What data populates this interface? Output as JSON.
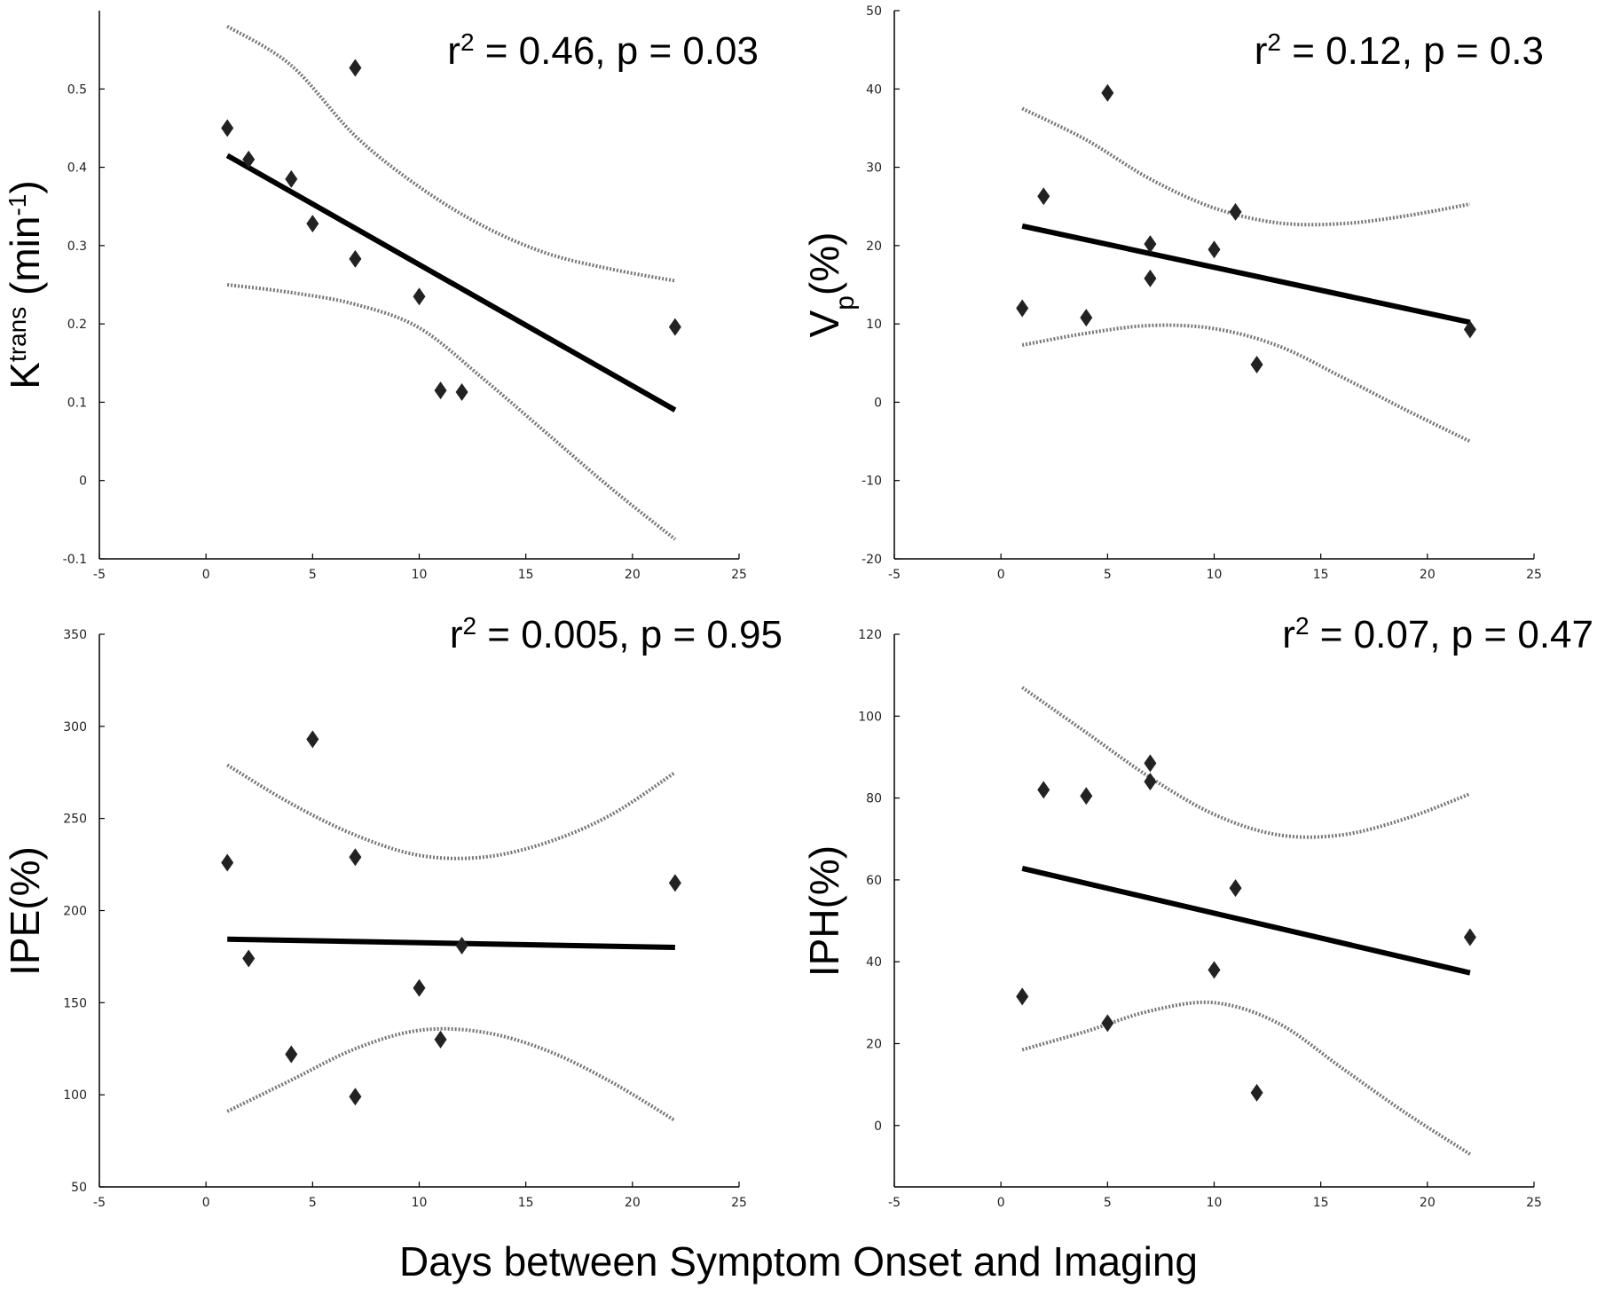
{
  "figure": {
    "shared_xlabel": "Days between Symptom Onset and Imaging"
  },
  "chart_data": [
    {
      "type": "scatter",
      "title": "",
      "stat_label": {
        "r2": "0.46",
        "p": "0.03"
      },
      "ylabel": {
        "base": "K",
        "sup": "trans",
        "unit_pre": " (min",
        "unit_sup": "-1",
        "unit_post": ")"
      },
      "xlim": [
        -5,
        25
      ],
      "ylim": [
        -0.1,
        0.6
      ],
      "xticks": [
        -5,
        0,
        5,
        10,
        15,
        20,
        25
      ],
      "yticks": [
        -0.1,
        0,
        0.1,
        0.2,
        0.3,
        0.4,
        0.5
      ],
      "ytick_labels": [
        "-0.1",
        "0",
        "0.1",
        "0.2",
        "0.3",
        "0.4",
        "0.5"
      ],
      "points": [
        {
          "x": 1,
          "y": 0.45
        },
        {
          "x": 2,
          "y": 0.41
        },
        {
          "x": 4,
          "y": 0.385
        },
        {
          "x": 5,
          "y": 0.328
        },
        {
          "x": 7,
          "y": 0.527
        },
        {
          "x": 7,
          "y": 0.283
        },
        {
          "x": 10,
          "y": 0.235
        },
        {
          "x": 11,
          "y": 0.115
        },
        {
          "x": 12,
          "y": 0.113
        },
        {
          "x": 22,
          "y": 0.196
        }
      ],
      "fit": [
        {
          "x": 1,
          "y": 0.415
        },
        {
          "x": 22,
          "y": 0.09
        }
      ],
      "ci_upper": [
        {
          "x": 1,
          "y": 0.58
        },
        {
          "x": 4,
          "y": 0.53
        },
        {
          "x": 7,
          "y": 0.44
        },
        {
          "x": 10,
          "y": 0.375
        },
        {
          "x": 13,
          "y": 0.325
        },
        {
          "x": 16,
          "y": 0.29
        },
        {
          "x": 19,
          "y": 0.27
        },
        {
          "x": 22,
          "y": 0.255
        }
      ],
      "ci_lower": [
        {
          "x": 1,
          "y": 0.25
        },
        {
          "x": 4,
          "y": 0.24
        },
        {
          "x": 7,
          "y": 0.225
        },
        {
          "x": 10,
          "y": 0.195
        },
        {
          "x": 13,
          "y": 0.13
        },
        {
          "x": 16,
          "y": 0.06
        },
        {
          "x": 19,
          "y": -0.01
        },
        {
          "x": 22,
          "y": -0.075
        }
      ]
    },
    {
      "type": "scatter",
      "title": "",
      "stat_label": {
        "r2": "0.12",
        "p": "0.3"
      },
      "ylabel": {
        "base": "V",
        "sub": "p",
        "post": "(%)"
      },
      "xlim": [
        -5,
        25
      ],
      "ylim": [
        -20,
        50
      ],
      "xticks": [
        -5,
        0,
        5,
        10,
        15,
        20,
        25
      ],
      "yticks": [
        -20,
        -10,
        0,
        10,
        20,
        30,
        40,
        50
      ],
      "ytick_labels": [
        "-20",
        "-10",
        "0",
        "10",
        "20",
        "30",
        "40",
        "50"
      ],
      "points": [
        {
          "x": 1,
          "y": 12
        },
        {
          "x": 2,
          "y": 26.3
        },
        {
          "x": 4,
          "y": 10.8
        },
        {
          "x": 5,
          "y": 39.5
        },
        {
          "x": 7,
          "y": 20.2
        },
        {
          "x": 7,
          "y": 15.8
        },
        {
          "x": 10,
          "y": 19.5
        },
        {
          "x": 11,
          "y": 24.3
        },
        {
          "x": 12,
          "y": 4.8
        },
        {
          "x": 22,
          "y": 9.3
        }
      ],
      "fit": [
        {
          "x": 1,
          "y": 22.5
        },
        {
          "x": 22,
          "y": 10.2
        }
      ],
      "ci_upper": [
        {
          "x": 1,
          "y": 37.5
        },
        {
          "x": 4,
          "y": 33.5
        },
        {
          "x": 7,
          "y": 28.5
        },
        {
          "x": 10,
          "y": 24.8
        },
        {
          "x": 13,
          "y": 22.9
        },
        {
          "x": 16,
          "y": 22.8
        },
        {
          "x": 19,
          "y": 23.8
        },
        {
          "x": 22,
          "y": 25.3
        }
      ],
      "ci_lower": [
        {
          "x": 1,
          "y": 7.3
        },
        {
          "x": 4,
          "y": 8.8
        },
        {
          "x": 7,
          "y": 9.8
        },
        {
          "x": 10,
          "y": 9.4
        },
        {
          "x": 13,
          "y": 7.2
        },
        {
          "x": 16,
          "y": 3.2
        },
        {
          "x": 19,
          "y": -1.0
        },
        {
          "x": 22,
          "y": -5.0
        }
      ]
    },
    {
      "type": "scatter",
      "title": "",
      "stat_label": {
        "r2": "0.005",
        "p": "0.95"
      },
      "ylabel": {
        "base": "IPE(%)"
      },
      "xlim": [
        -5,
        25
      ],
      "ylim": [
        50,
        350
      ],
      "xticks": [
        -5,
        0,
        5,
        10,
        15,
        20,
        25
      ],
      "yticks": [
        50,
        100,
        150,
        200,
        250,
        300,
        350
      ],
      "ytick_labels": [
        "50",
        "100",
        "150",
        "200",
        "250",
        "300",
        "350"
      ],
      "points": [
        {
          "x": 1,
          "y": 226
        },
        {
          "x": 2,
          "y": 174
        },
        {
          "x": 4,
          "y": 122
        },
        {
          "x": 5,
          "y": 293
        },
        {
          "x": 7,
          "y": 229
        },
        {
          "x": 7,
          "y": 99
        },
        {
          "x": 10,
          "y": 158
        },
        {
          "x": 11,
          "y": 130
        },
        {
          "x": 12,
          "y": 181
        },
        {
          "x": 22,
          "y": 215
        }
      ],
      "fit": [
        {
          "x": 1,
          "y": 184.5
        },
        {
          "x": 22,
          "y": 180
        }
      ],
      "ci_upper": [
        {
          "x": 1,
          "y": 279
        },
        {
          "x": 4,
          "y": 258
        },
        {
          "x": 7,
          "y": 241
        },
        {
          "x": 10,
          "y": 230
        },
        {
          "x": 13,
          "y": 229
        },
        {
          "x": 16,
          "y": 237
        },
        {
          "x": 19,
          "y": 252
        },
        {
          "x": 22,
          "y": 275
        }
      ],
      "ci_lower": [
        {
          "x": 1,
          "y": 91
        },
        {
          "x": 4,
          "y": 108
        },
        {
          "x": 7,
          "y": 125
        },
        {
          "x": 10,
          "y": 135
        },
        {
          "x": 13,
          "y": 134
        },
        {
          "x": 16,
          "y": 124
        },
        {
          "x": 19,
          "y": 107
        },
        {
          "x": 22,
          "y": 86
        }
      ]
    },
    {
      "type": "scatter",
      "title": "",
      "stat_label": {
        "r2": "0.07",
        "p": "0.47"
      },
      "ylabel": {
        "base": "IPH(%)"
      },
      "xlim": [
        -5,
        25
      ],
      "ylim": [
        -15,
        120
      ],
      "xticks": [
        -5,
        0,
        5,
        10,
        15,
        20,
        25
      ],
      "yticks": [
        0,
        20,
        40,
        60,
        80,
        100,
        120
      ],
      "ytick_labels": [
        "0",
        "20",
        "40",
        "60",
        "80",
        "100",
        "120"
      ],
      "points": [
        {
          "x": 1,
          "y": 31.5
        },
        {
          "x": 2,
          "y": 82
        },
        {
          "x": 4,
          "y": 80.5
        },
        {
          "x": 5,
          "y": 25
        },
        {
          "x": 7,
          "y": 88.5
        },
        {
          "x": 7,
          "y": 84
        },
        {
          "x": 10,
          "y": 38
        },
        {
          "x": 11,
          "y": 58
        },
        {
          "x": 12,
          "y": 8
        },
        {
          "x": 22,
          "y": 46
        }
      ],
      "fit": [
        {
          "x": 1,
          "y": 62.8
        },
        {
          "x": 22,
          "y": 37.3
        }
      ],
      "ci_upper": [
        {
          "x": 1,
          "y": 107
        },
        {
          "x": 4,
          "y": 96
        },
        {
          "x": 7,
          "y": 85
        },
        {
          "x": 10,
          "y": 76
        },
        {
          "x": 13,
          "y": 71
        },
        {
          "x": 16,
          "y": 71
        },
        {
          "x": 19,
          "y": 75
        },
        {
          "x": 22,
          "y": 81
        }
      ],
      "ci_lower": [
        {
          "x": 1,
          "y": 18.5
        },
        {
          "x": 4,
          "y": 23
        },
        {
          "x": 7,
          "y": 28
        },
        {
          "x": 10,
          "y": 30
        },
        {
          "x": 13,
          "y": 25
        },
        {
          "x": 16,
          "y": 14
        },
        {
          "x": 19,
          "y": 3
        },
        {
          "x": 22,
          "y": -7
        }
      ]
    }
  ]
}
